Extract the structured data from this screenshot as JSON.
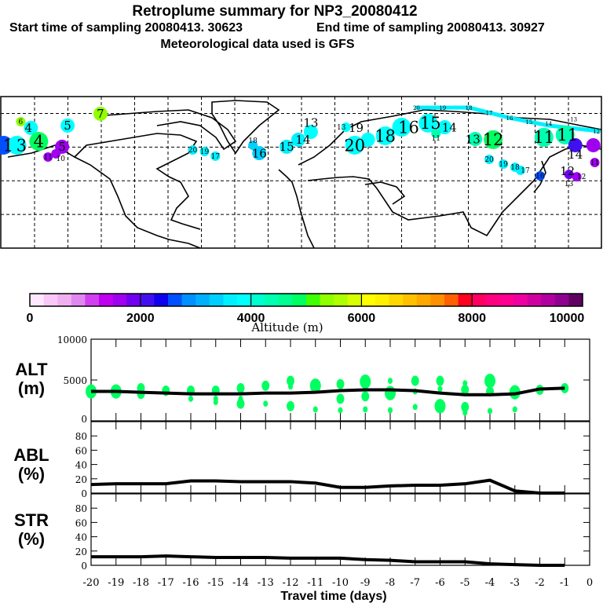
{
  "header": {
    "title": "Retroplume summary for NP3_20080412",
    "sampling_start": "Start time of sampling 20080413. 30623",
    "sampling_end": "End time of sampling 20080413. 30927",
    "met_data": "Meteorological data used is GFS"
  },
  "map": {
    "lon_range": [
      -180,
      180
    ],
    "lat_range": [
      0,
      90
    ],
    "grid_step_deg": 20,
    "markers": [
      {
        "label": "1",
        "lon": -178.6,
        "lat": 61.1,
        "alt": 2700,
        "size": 3
      },
      {
        "label": "3",
        "lon": -170.6,
        "lat": 61.1,
        "alt": 3800,
        "size": 3
      },
      {
        "label": "4",
        "lon": -162.2,
        "lat": 71.4,
        "alt": 3800,
        "size": 2
      },
      {
        "label": "4",
        "lon": -157.5,
        "lat": 63.4,
        "alt": 4800,
        "size": 3
      },
      {
        "label": "5",
        "lon": -140.2,
        "lat": 72.8,
        "alt": 3800,
        "size": 2
      },
      {
        "label": "6",
        "lon": -168.3,
        "lat": 75.1,
        "alt": 5300,
        "size": 1
      },
      {
        "label": "5",
        "lon": -143.5,
        "lat": 60.2,
        "alt": 1600,
        "size": 2
      },
      {
        "label": "7",
        "lon": -120.5,
        "lat": 79.8,
        "alt": 5300,
        "size": 2
      },
      {
        "label": "11",
        "lon": -151.9,
        "lat": 54.1,
        "alt": 1500,
        "size": 1
      },
      {
        "label": "10",
        "lon": -147.2,
        "lat": 56.0,
        "alt": 1500,
        "size": 1
      },
      {
        "label": "18",
        "lon": -29.1,
        "lat": 61.1,
        "alt": 3400,
        "size": 1
      },
      {
        "label": "16",
        "lon": -25.3,
        "lat": 56.4,
        "alt": 3400,
        "size": 2
      },
      {
        "label": "20",
        "lon": -65.2,
        "lat": 58.3,
        "alt": 3700,
        "size": 1
      },
      {
        "label": "19",
        "lon": -58.1,
        "lat": 57.4,
        "alt": 3700,
        "size": 1
      },
      {
        "label": "17",
        "lon": -51.6,
        "lat": 54.6,
        "alt": 3700,
        "size": 1
      },
      {
        "label": "15",
        "lon": -8.9,
        "lat": 60.2,
        "alt": 3500,
        "size": 2
      },
      {
        "label": "14",
        "lon": -1.9,
        "lat": 64.4,
        "alt": 3600,
        "size": 2
      },
      {
        "label": "13",
        "lon": 5.6,
        "lat": 69.0,
        "alt": 3900,
        "size": 2
      },
      {
        "label": "13",
        "lon": 26.7,
        "lat": 71.8,
        "alt": 3900,
        "size": 1
      },
      {
        "label": "20",
        "lon": 31.9,
        "lat": 61.1,
        "alt": 3800,
        "size": 3
      },
      {
        "label": "19",
        "lon": 39.8,
        "lat": 64.4,
        "alt": 3800,
        "size": 2
      },
      {
        "label": "18",
        "lon": 50.2,
        "lat": 66.7,
        "alt": 3800,
        "size": 3
      },
      {
        "label": "16",
        "lon": 60.0,
        "lat": 71.8,
        "alt": 3800,
        "size": 3
      },
      {
        "label": "15",
        "lon": 75.9,
        "lat": 74.2,
        "alt": 3800,
        "size": 3
      },
      {
        "label": "14",
        "lon": 85.8,
        "lat": 71.8,
        "alt": 3800,
        "size": 2
      },
      {
        "label": "11",
        "lon": 80.6,
        "lat": 68.1,
        "alt": 4400,
        "size": 1
      },
      {
        "label": "13",
        "lon": 104.1,
        "lat": 64.8,
        "alt": 4300,
        "size": 2
      },
      {
        "label": "12",
        "lon": 114.9,
        "lat": 64.4,
        "alt": 4800,
        "size": 3
      },
      {
        "label": "20",
        "lon": 112.5,
        "lat": 52.7,
        "alt": 3600,
        "size": 1
      },
      {
        "label": "19",
        "lon": 121.0,
        "lat": 49.9,
        "alt": 3600,
        "size": 1
      },
      {
        "label": "18",
        "lon": 128.0,
        "lat": 48.0,
        "alt": 3600,
        "size": 1
      },
      {
        "label": "17",
        "lon": 131.3,
        "lat": 46.2,
        "alt": 3600,
        "size": 1
      },
      {
        "label": "16",
        "lon": 143.0,
        "lat": 42.9,
        "alt": 2700,
        "size": 1
      },
      {
        "label": "11",
        "lon": 145.3,
        "lat": 65.8,
        "alt": 4300,
        "size": 3
      },
      {
        "label": "11",
        "lon": 158.0,
        "lat": 67.2,
        "alt": 4300,
        "size": 3
      },
      {
        "label": "14",
        "lon": 164.1,
        "lat": 61.1,
        "alt": 2200,
        "size": 2
      },
      {
        "label": "12",
        "lon": 174.9,
        "lat": 61.1,
        "alt": 1600,
        "size": 2
      },
      {
        "label": "11",
        "lon": 175.8,
        "lat": 50.8,
        "alt": 1500,
        "size": 1
      },
      {
        "label": "13",
        "lon": 160.3,
        "lat": 43.8,
        "alt": 1800,
        "size": 1
      },
      {
        "label": "12",
        "lon": 165.0,
        "lat": 42.4,
        "alt": 1500,
        "size": 1
      }
    ],
    "track": {
      "alt": 3500,
      "points": [
        [
          68.9,
          83.5
        ],
        [
          100.3,
          83.5
        ],
        [
          124.7,
          77.4
        ],
        [
          148.1,
          72.8
        ],
        [
          178.2,
          69.5
        ]
      ],
      "labels": [
        "20",
        "19",
        "18",
        "17",
        "16",
        "15",
        "14",
        "13",
        "12"
      ]
    }
  },
  "colorbar": {
    "label": "Altitude (m)",
    "range": [
      0,
      10000
    ],
    "tick_labels": [
      "0",
      "2000",
      "4000",
      "6000",
      "8000",
      "10000"
    ],
    "colors": [
      "#ffe8ff",
      "#f8c8f8",
      "#f0b0f0",
      "#e088f0",
      "#d040f0",
      "#c000f0",
      "#a000f0",
      "#7000f0",
      "#4010f0",
      "#1000f0",
      "#0050ff",
      "#0090ff",
      "#00b0ff",
      "#00d0ff",
      "#00f0ff",
      "#00ffff",
      "#00ffd0",
      "#00ffb0",
      "#00ff90",
      "#00ff60",
      "#40ff00",
      "#90ff00",
      "#b0ff00",
      "#d8ff00",
      "#ffff00",
      "#fff000",
      "#ffd800",
      "#ffc000",
      "#ffa800",
      "#ff9000",
      "#ff6000",
      "#ff0020",
      "#ff0060",
      "#ff0080",
      "#ff0090",
      "#f000a0",
      "#d000a0",
      "#b000a0",
      "#900090",
      "#600060"
    ]
  },
  "chart_data": [
    {
      "type": "line",
      "panel": "ALT",
      "ylabel": "ALT",
      "yunit": "(m)",
      "ylim": [
        0,
        10000
      ],
      "yticks": [
        "0",
        "5000",
        "10000"
      ],
      "x": [
        -20,
        -19,
        -18,
        -17,
        -16,
        -15,
        -14,
        -13,
        -12,
        -11,
        -10,
        -9,
        -8,
        -7,
        -6,
        -5,
        -4,
        -3,
        -2,
        -1
      ],
      "values": [
        3600,
        3600,
        3500,
        3400,
        3300,
        3300,
        3300,
        3400,
        3400,
        3500,
        3700,
        3800,
        3800,
        3700,
        3400,
        3200,
        3200,
        3300,
        3900,
        4000
      ],
      "scatter_color": "#00ff60",
      "scatter": [
        [
          -20,
          3600,
          3
        ],
        [
          -19,
          3600,
          3
        ],
        [
          -18,
          4000,
          2
        ],
        [
          -18,
          3300,
          2
        ],
        [
          -17,
          3700,
          2
        ],
        [
          -17,
          3400,
          1
        ],
        [
          -16,
          3700,
          2
        ],
        [
          -16,
          2700,
          1
        ],
        [
          -15,
          3700,
          2
        ],
        [
          -15,
          2700,
          1
        ],
        [
          -15,
          2300,
          1
        ],
        [
          -14,
          4000,
          2
        ],
        [
          -14,
          2700,
          1
        ],
        [
          -14,
          2100,
          2
        ],
        [
          -13,
          4300,
          2
        ],
        [
          -13,
          2100,
          1
        ],
        [
          -12,
          4900,
          2
        ],
        [
          -12,
          4200,
          1
        ],
        [
          -12,
          1800,
          2
        ],
        [
          -11,
          4300,
          3
        ],
        [
          -11,
          1400,
          1
        ],
        [
          -10,
          4500,
          2
        ],
        [
          -10,
          2700,
          2
        ],
        [
          -10,
          1300,
          1
        ],
        [
          -9,
          4800,
          3
        ],
        [
          -9,
          3000,
          2
        ],
        [
          -9,
          1400,
          1
        ],
        [
          -8,
          4900,
          1
        ],
        [
          -8,
          3400,
          3
        ],
        [
          -8,
          1300,
          1
        ],
        [
          -7,
          4900,
          2
        ],
        [
          -7,
          3600,
          1
        ],
        [
          -7,
          1700,
          1
        ],
        [
          -6,
          4900,
          2
        ],
        [
          -6,
          3900,
          1
        ],
        [
          -6,
          1800,
          3
        ],
        [
          -5,
          4600,
          1
        ],
        [
          -5,
          3800,
          2
        ],
        [
          -5,
          1700,
          2
        ],
        [
          -5,
          1000,
          1
        ],
        [
          -4,
          4900,
          3
        ],
        [
          -4,
          3600,
          2
        ],
        [
          -4,
          1200,
          1
        ],
        [
          -3,
          3500,
          3
        ],
        [
          -3,
          1400,
          1
        ],
        [
          -2,
          3800,
          2
        ],
        [
          -1,
          4000,
          2
        ]
      ]
    },
    {
      "type": "line",
      "panel": "ABL",
      "ylabel": "ABL",
      "yunit": "(%)",
      "ylim": [
        0,
        100
      ],
      "yticks": [
        "0",
        "20",
        "40",
        "60",
        "80"
      ],
      "x": [
        -20,
        -19,
        -18,
        -17,
        -16,
        -15,
        -14,
        -13,
        -12,
        -11,
        -10,
        -9,
        -8,
        -7,
        -6,
        -5,
        -4,
        -3,
        -2,
        -1
      ],
      "values": [
        12,
        13,
        13,
        13,
        17,
        17,
        16,
        16,
        16,
        14,
        8,
        8,
        10,
        11,
        11,
        13,
        18,
        3,
        0,
        0
      ]
    },
    {
      "type": "line",
      "panel": "STR",
      "ylabel": "STR",
      "yunit": "(%)",
      "ylim": [
        0,
        100
      ],
      "yticks": [
        "0",
        "20",
        "40",
        "60",
        "80"
      ],
      "x": [
        -20,
        -19,
        -18,
        -17,
        -16,
        -15,
        -14,
        -13,
        -12,
        -11,
        -10,
        -9,
        -8,
        -7,
        -6,
        -5,
        -4,
        -3,
        -2,
        -1
      ],
      "values": [
        12,
        12,
        12,
        13,
        12,
        11,
        11,
        11,
        10,
        10,
        10,
        8,
        7,
        5,
        5,
        5,
        2,
        1,
        0,
        0
      ],
      "xlabel": "Travel time (days)",
      "xticks": [
        "-20",
        "-19",
        "-18",
        "-17",
        "-16",
        "-15",
        "-14",
        "-13",
        "-12",
        "-11",
        "-10",
        "-9",
        "-8",
        "-7",
        "-6",
        "-5",
        "-4",
        "-3",
        "-2",
        "-1",
        "0"
      ],
      "xlim": [
        -20,
        0
      ]
    }
  ]
}
